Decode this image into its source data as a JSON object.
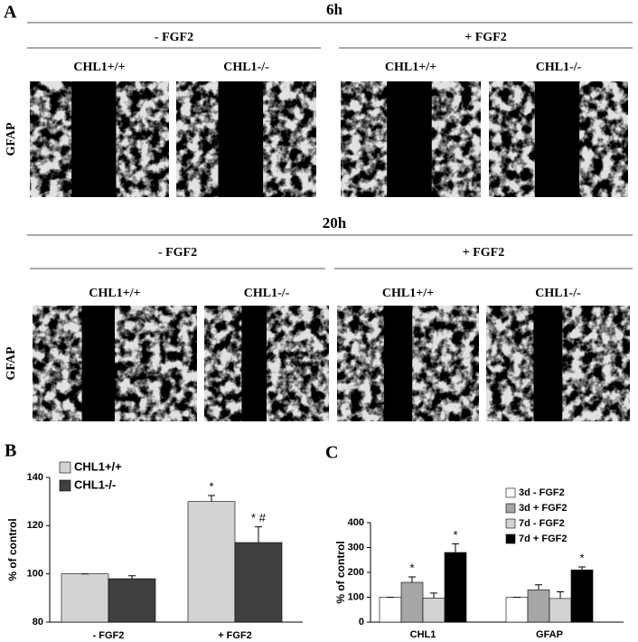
{
  "panel_a": {
    "label": "A",
    "rows": [
      {
        "time": "6h",
        "stain": "GFAP",
        "groups": [
          {
            "treatment": "- FGF2",
            "columns": [
              "CHL1+/+",
              "CHL1-/-"
            ]
          },
          {
            "treatment": "+ FGF2",
            "columns": [
              "CHL1+/+",
              "CHL1-/-"
            ]
          }
        ]
      },
      {
        "time": "20h",
        "stain": "GFAP",
        "groups": [
          {
            "treatment": "- FGF2",
            "columns": [
              "CHL1+/+",
              "CHL1-/-"
            ]
          },
          {
            "treatment": "+ FGF2",
            "columns": [
              "CHL1+/+",
              "CHL1-/-"
            ]
          }
        ]
      }
    ]
  },
  "chart_data": [
    {
      "type": "bar",
      "label": "B",
      "y_label": "% of control",
      "categories": [
        "- FGF2",
        "+ FGF2"
      ],
      "series": [
        {
          "name": "CHL1+/+",
          "color": "#d3d3d3",
          "values": [
            100,
            130
          ],
          "errors": [
            0,
            2.5
          ]
        },
        {
          "name": "CHL1-/-",
          "color": "#404040",
          "values": [
            98,
            113
          ],
          "errors": [
            1.2,
            6.5
          ]
        }
      ],
      "annotations": [
        {
          "text": "*",
          "series": 0,
          "category": 1
        },
        {
          "text": "* #",
          "series": 1,
          "category": 1
        }
      ],
      "ylim": [
        80,
        140
      ],
      "yticks": [
        80,
        100,
        120,
        140
      ],
      "legend": "top-left"
    },
    {
      "type": "bar",
      "label": "C",
      "y_label": "% of control",
      "categories": [
        "CHL1",
        "GFAP"
      ],
      "series": [
        {
          "name": "3d - FGF2",
          "color": "#ffffff",
          "values": [
            100,
            100
          ],
          "errors": [
            0,
            0
          ]
        },
        {
          "name": "3d + FGF2",
          "color": "#a6a6a6",
          "values": [
            160,
            130
          ],
          "errors": [
            22,
            20
          ]
        },
        {
          "name": "7d - FGF2",
          "color": "#d3d3d3",
          "values": [
            97,
            95
          ],
          "errors": [
            20,
            27
          ]
        },
        {
          "name": "7d + FGF2",
          "color": "#000000",
          "values": [
            280,
            210
          ],
          "errors": [
            35,
            12
          ]
        }
      ],
      "annotations": [
        {
          "text": "*",
          "series": 1,
          "category": 0
        },
        {
          "text": "*",
          "series": 3,
          "category": 0
        },
        {
          "text": "*",
          "series": 3,
          "category": 1
        }
      ],
      "ylim": [
        0,
        400
      ],
      "yticks": [
        0,
        100,
        200,
        300,
        400
      ],
      "legend": "top-right"
    }
  ]
}
